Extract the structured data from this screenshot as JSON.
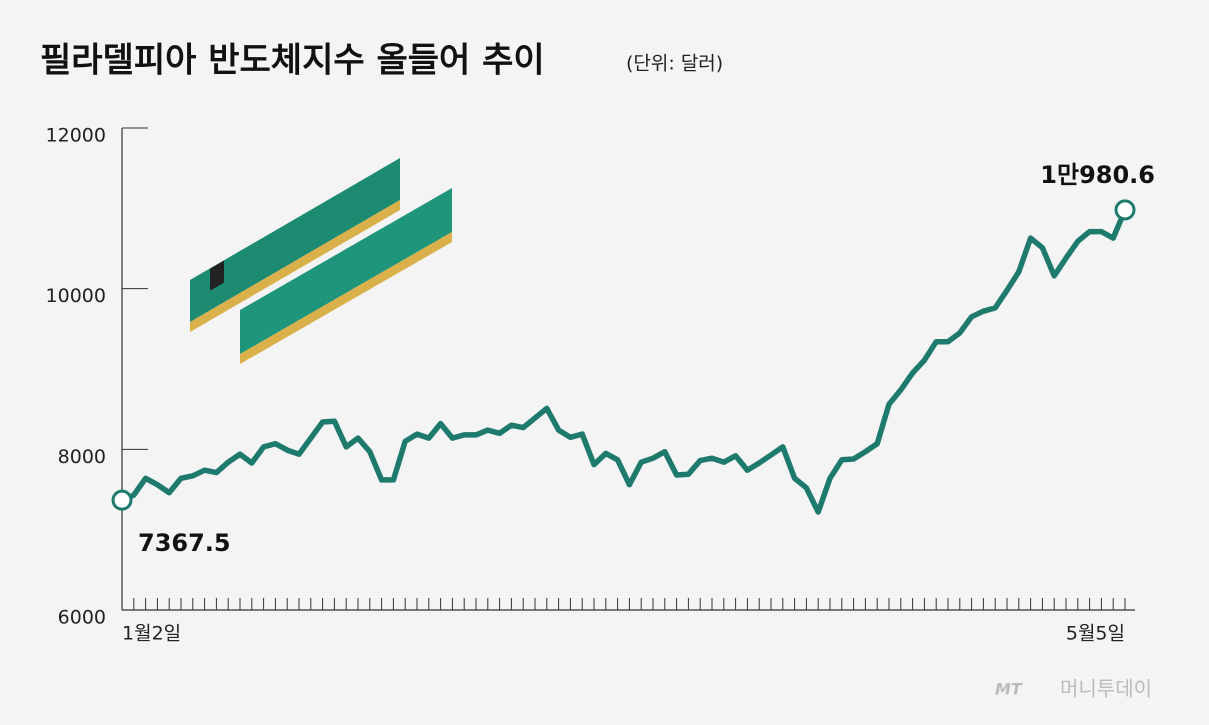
{
  "chart_data": {
    "type": "line",
    "title": "필라델피아 반도체지수 올들어 추이",
    "subtitle": "(단위: 달러)",
    "source_logo": "MT",
    "watermark": "머니투데이",
    "categories": [
      "1월2일",
      null,
      null,
      null,
      null,
      null,
      null,
      null,
      null,
      null,
      null,
      null,
      null,
      null,
      null,
      null,
      null,
      null,
      null,
      null,
      null,
      null,
      null,
      null,
      null,
      null,
      null,
      null,
      null,
      null,
      null,
      null,
      null,
      null,
      null,
      null,
      null,
      null,
      null,
      null,
      null,
      null,
      null,
      null,
      null,
      null,
      null,
      null,
      null,
      null,
      null,
      null,
      null,
      null,
      null,
      null,
      null,
      null,
      null,
      null,
      null,
      null,
      null,
      null,
      null,
      null,
      null,
      null,
      null,
      null,
      null,
      null,
      null,
      null,
      null,
      null,
      null,
      null,
      null,
      null,
      null,
      null,
      null,
      null,
      null,
      "5월5일"
    ],
    "series": [
      {
        "name": "필라델피아 반도체지수",
        "color": "#1f7a6e",
        "values": [
          7367.5,
          7430,
          7640,
          7560,
          7460,
          7640,
          7670,
          7740,
          7710,
          7840,
          7940,
          7830,
          8030,
          8070,
          7990,
          7940,
          8140,
          8340,
          8350,
          8030,
          8140,
          7970,
          7620,
          7620,
          8100,
          8190,
          8140,
          8320,
          8140,
          8180,
          8180,
          8240,
          8200,
          8300,
          8270,
          8390,
          8510,
          8240,
          8150,
          8190,
          7810,
          7950,
          7870,
          7560,
          7840,
          7890,
          7970,
          7680,
          7690,
          7860,
          7890,
          7840,
          7920,
          7740,
          7830,
          7930,
          8030,
          7640,
          7520,
          7220,
          7640,
          7870,
          7880,
          7970,
          8070,
          8560,
          8740,
          8950,
          9110,
          9340,
          9340,
          9450,
          9650,
          9720,
          9760,
          9980,
          10210,
          10630,
          10510,
          10160,
          10380,
          10590,
          10710,
          10710,
          10630,
          10980.6
        ],
        "value_labels": [
          null,
          null,
          null,
          null,
          null,
          null,
          null,
          null,
          null,
          null,
          null,
          null,
          null,
          null,
          null,
          null,
          null,
          null,
          null,
          null,
          null,
          null,
          null,
          null,
          null,
          null,
          null,
          null,
          null,
          null,
          null,
          null,
          null,
          null,
          null,
          null,
          null,
          null,
          null,
          null,
          null,
          null,
          null,
          null,
          null,
          null,
          null,
          null,
          null,
          null,
          null,
          null,
          null,
          null,
          null,
          null,
          null,
          null,
          null,
          null,
          null,
          null,
          null,
          null,
          null,
          null,
          null,
          null,
          null,
          null,
          null,
          null,
          null,
          null,
          null,
          null,
          null,
          null,
          null,
          null,
          null,
          null,
          null,
          null,
          null,
          "1만980.6"
        ]
      }
    ],
    "ylim": [
      6000,
      12000
    ],
    "yticks": [
      6000,
      8000,
      10000,
      12000
    ],
    "grid": false
  }
}
